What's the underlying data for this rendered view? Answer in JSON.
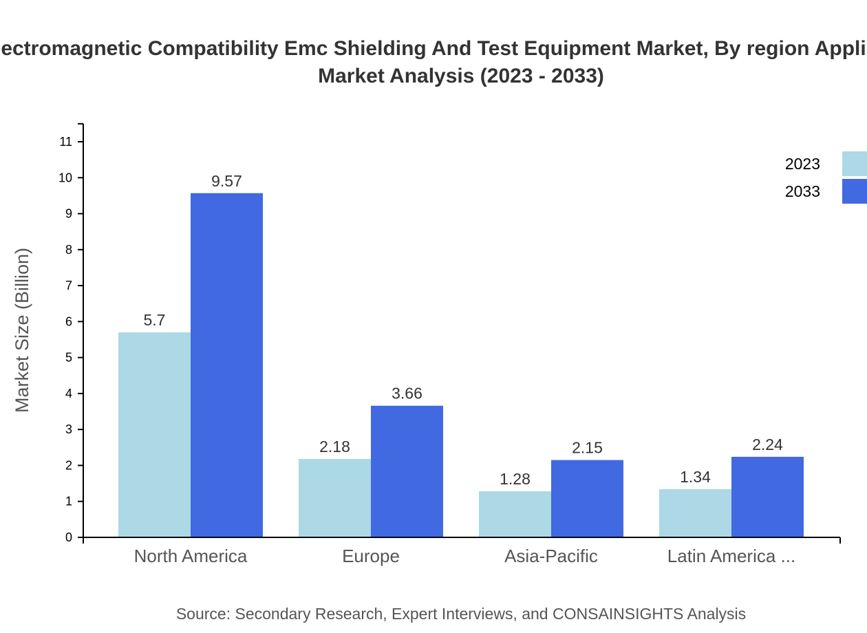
{
  "chart_data": {
    "type": "bar",
    "title_line1": "Electromagnetic Compatibility Emc Shielding And Test Equipment Market, By region Application",
    "title_line2": "Market Analysis (2023 - 2033)",
    "xlabel": "",
    "ylabel": "Market Size (Billion)",
    "ylim": [
      0,
      11.5
    ],
    "yticks": [
      0,
      1,
      2,
      3,
      4,
      5,
      6,
      7,
      8,
      9,
      10,
      11
    ],
    "categories": [
      "North America",
      "Europe",
      "Asia-Pacific",
      "Latin America ..."
    ],
    "series": [
      {
        "name": "2023",
        "color": "#add8e6",
        "values": [
          5.7,
          2.18,
          1.28,
          1.34
        ],
        "labels": [
          "5.7",
          "2.18",
          "1.28",
          "1.34"
        ]
      },
      {
        "name": "2033",
        "color": "#4169e1",
        "values": [
          9.57,
          3.66,
          2.15,
          2.24
        ],
        "labels": [
          "9.57",
          "3.66",
          "2.15",
          "2.24"
        ]
      }
    ],
    "legend_placement": "top-right",
    "grid": false,
    "source": "Source: Secondary Research, Expert Interviews, and CONSAINSIGHTS Analysis"
  }
}
